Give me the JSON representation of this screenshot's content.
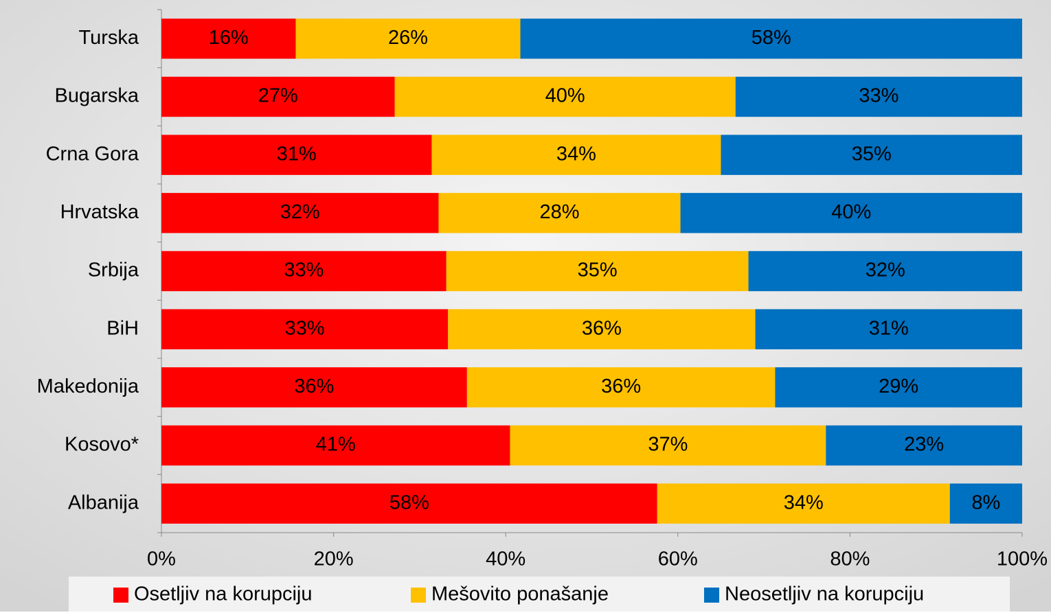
{
  "chart_data": {
    "type": "stacked_barh",
    "categories": [
      "Turska",
      "Bugarska",
      "Crna Gora",
      "Hrvatska",
      "Srbija",
      "BiH",
      "Makedonija",
      "Kosovo*",
      "Albanija"
    ],
    "series": [
      {
        "name": "Osetljiv na korupciju",
        "color": "#ff0000",
        "values": [
          15.6,
          27.1,
          31.4,
          32.2,
          33.1,
          33.3,
          35.5,
          40.5,
          57.6
        ],
        "value_labels": [
          "16%",
          "27%",
          "31%",
          "32%",
          "33%",
          "33%",
          "36%",
          "41%",
          "58%"
        ]
      },
      {
        "name": "Mešovito ponašanje",
        "color": "#ffc000",
        "values": [
          26.1,
          39.6,
          33.6,
          28.1,
          35.1,
          35.7,
          35.8,
          36.7,
          34.0
        ],
        "value_labels": [
          "26%",
          "40%",
          "34%",
          "28%",
          "35%",
          "36%",
          "36%",
          "37%",
          "34%"
        ]
      },
      {
        "name": "Neosetljiv na korupciju",
        "color": "#0070c0",
        "values": [
          58.3,
          33.3,
          35.0,
          39.7,
          31.8,
          31.0,
          28.7,
          22.8,
          8.4
        ],
        "value_labels": [
          "58%",
          "33%",
          "35%",
          "40%",
          "32%",
          "31%",
          "29%",
          "23%",
          "8%"
        ]
      }
    ],
    "xlim": [
      0,
      100
    ],
    "xticks": [
      {
        "value": 0,
        "label": "0%"
      },
      {
        "value": 20,
        "label": "20%"
      },
      {
        "value": 40,
        "label": "40%"
      },
      {
        "value": 60,
        "label": "60%"
      },
      {
        "value": 80,
        "label": "80%"
      },
      {
        "value": 100,
        "label": "100%"
      }
    ],
    "legend": "bottom"
  }
}
